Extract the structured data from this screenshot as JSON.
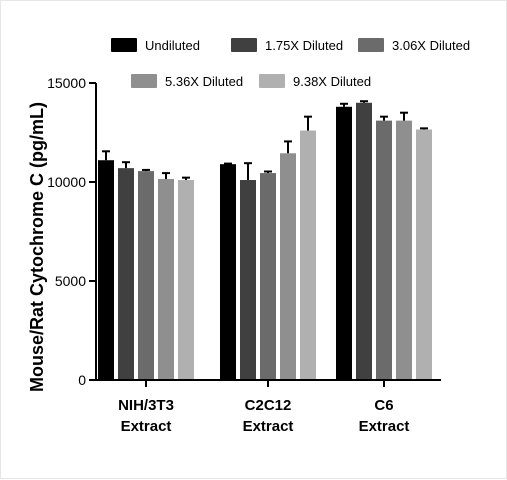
{
  "chart_data": {
    "type": "bar",
    "ylabel": "Mouse/Rat Cytochrome C (pg/mL)",
    "xlabel": "",
    "title": "",
    "ylim": [
      0,
      15000
    ],
    "yticks": [
      0,
      5000,
      10000,
      15000
    ],
    "categories": [
      [
        "NIH/3T3",
        "Extract"
      ],
      [
        "C2C12",
        "Extract"
      ],
      [
        "C6",
        "Extract"
      ]
    ],
    "series": [
      {
        "name": "Undiluted",
        "color": "#000000",
        "values": [
          11100,
          10900,
          13800
        ],
        "errors": [
          450,
          30,
          150
        ]
      },
      {
        "name": "1.75X Diluted",
        "color": "#404040",
        "values": [
          10700,
          10100,
          14000
        ],
        "errors": [
          300,
          850,
          80
        ]
      },
      {
        "name": "3.06X Diluted",
        "color": "#6b6b6b",
        "values": [
          10550,
          10450,
          13100
        ],
        "errors": [
          60,
          80,
          200
        ]
      },
      {
        "name": "5.36X Diluted",
        "color": "#8f8f8f",
        "values": [
          10150,
          11450,
          13100
        ],
        "errors": [
          300,
          600,
          400
        ]
      },
      {
        "name": "9.38X Diluted",
        "color": "#b0b0b0",
        "values": [
          10100,
          12600,
          12650
        ],
        "errors": [
          120,
          700,
          60
        ]
      }
    ],
    "legend_position": "top",
    "grid": false
  }
}
